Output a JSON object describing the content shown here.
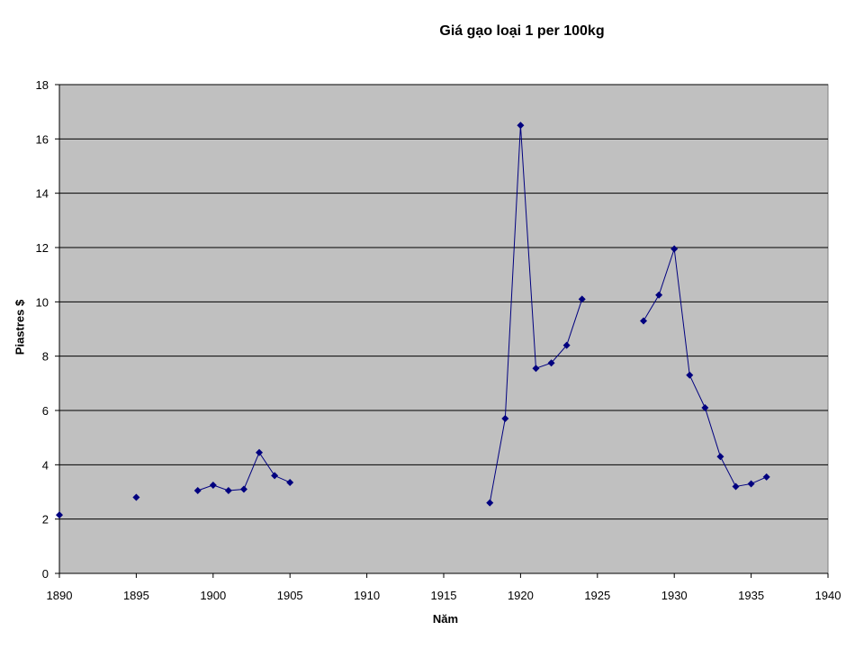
{
  "chart_data": {
    "type": "line",
    "title": "Giá gạo loại 1 per 100kg",
    "xlabel": "Năm",
    "ylabel": "Piastres $",
    "xlim": [
      1890,
      1940
    ],
    "ylim": [
      0,
      18
    ],
    "x_ticks": [
      "1890",
      "1895",
      "1900",
      "1905",
      "1910",
      "1915",
      "1920",
      "1925",
      "1930",
      "1935",
      "1940"
    ],
    "y_ticks": [
      "0",
      "2",
      "4",
      "6",
      "8",
      "10",
      "12",
      "14",
      "16",
      "18"
    ],
    "grid": true,
    "legend": "none",
    "colors": {
      "series": "#00007f",
      "plot_area": "#c0c0c0",
      "grid": "#000000"
    },
    "series": [
      {
        "points": [
          {
            "x": 1890,
            "y": 2.15
          },
          {
            "x": 1895,
            "y": 2.8
          },
          {
            "x": 1899,
            "y": 3.05
          },
          {
            "x": 1900,
            "y": 3.25
          },
          {
            "x": 1901,
            "y": 3.05
          },
          {
            "x": 1902,
            "y": 3.1
          },
          {
            "x": 1903,
            "y": 4.45
          },
          {
            "x": 1904,
            "y": 3.6
          },
          {
            "x": 1905,
            "y": 3.35
          },
          {
            "x": 1918,
            "y": 2.6
          },
          {
            "x": 1919,
            "y": 5.7
          },
          {
            "x": 1920,
            "y": 16.5
          },
          {
            "x": 1921,
            "y": 7.55
          },
          {
            "x": 1922,
            "y": 7.75
          },
          {
            "x": 1923,
            "y": 8.4
          },
          {
            "x": 1924,
            "y": 10.1
          },
          {
            "x": 1928,
            "y": 9.3
          },
          {
            "x": 1929,
            "y": 10.25
          },
          {
            "x": 1930,
            "y": 11.95
          },
          {
            "x": 1931,
            "y": 7.3
          },
          {
            "x": 1932,
            "y": 6.1
          },
          {
            "x": 1933,
            "y": 4.3
          },
          {
            "x": 1934,
            "y": 3.2
          },
          {
            "x": 1935,
            "y": 3.3
          },
          {
            "x": 1936,
            "y": 3.55
          }
        ],
        "segments": [
          [
            0,
            0
          ],
          [
            1,
            1
          ],
          [
            2,
            8
          ],
          [
            9,
            15
          ],
          [
            16,
            24
          ]
        ]
      }
    ]
  }
}
